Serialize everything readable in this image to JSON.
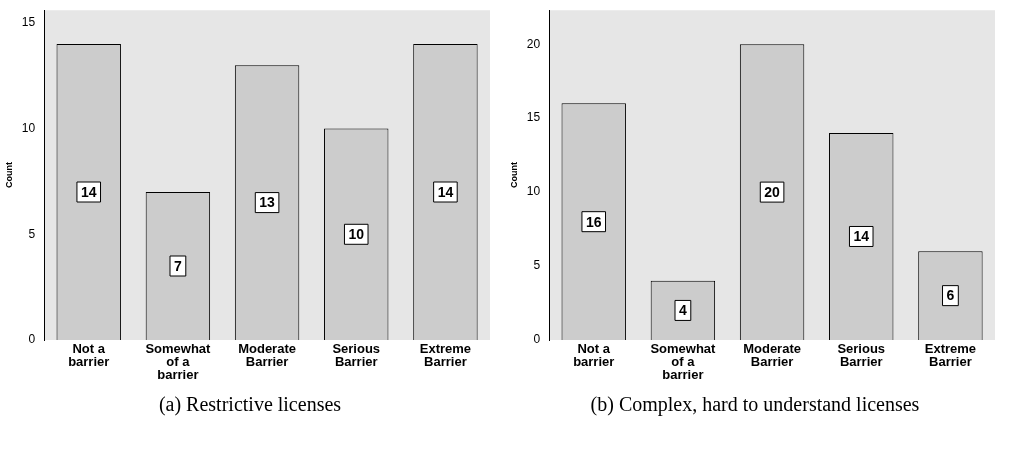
{
  "chart_data": [
    {
      "type": "bar",
      "categories": [
        "Not a barrier",
        "Somewhat of a barrier",
        "Moderate Barrier",
        "Serious Barrier",
        "Extreme Barrier"
      ],
      "values": [
        14,
        7,
        13,
        10,
        14
      ],
      "color": "#cccccc",
      "ylabel": "Count",
      "ylim": [
        0,
        15.6
      ],
      "yticks": [
        0,
        5,
        10,
        15
      ],
      "grid": false,
      "data_labels": true,
      "annotations": [
        "(a) Restrictive licenses"
      ]
    },
    {
      "type": "bar",
      "categories": [
        "Not a barrier",
        "Somewhat of a barrier",
        "Moderate Barrier",
        "Serious Barrier",
        "Extreme Barrier"
      ],
      "values": [
        16,
        4,
        20,
        14,
        6
      ],
      "color": "#cccccc",
      "ylabel": "Count",
      "ylim": [
        0,
        22.3
      ],
      "yticks": [
        0,
        5,
        10,
        15,
        20
      ],
      "grid": false,
      "data_labels": true,
      "annotations": [
        "(b) Complex, hard to understand licenses"
      ]
    }
  ]
}
